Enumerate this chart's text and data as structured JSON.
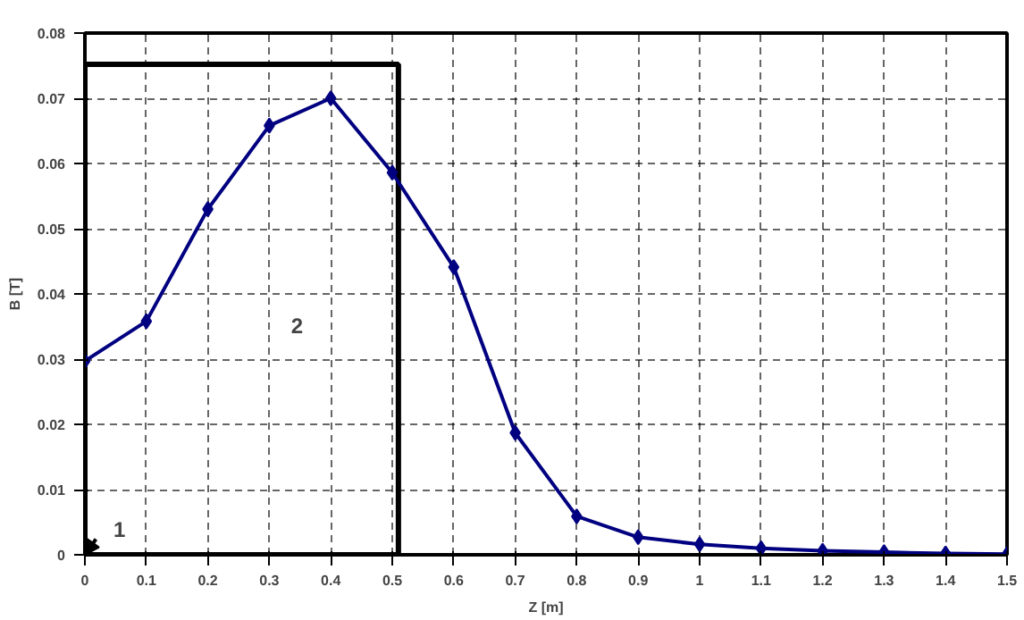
{
  "chart_data": {
    "type": "line",
    "xlabel": "Z [m]",
    "ylabel": "B [T]",
    "x": [
      0,
      0.1,
      0.2,
      0.3,
      0.4,
      0.5,
      0.6,
      0.7,
      0.8,
      0.9,
      1.0,
      1.1,
      1.2,
      1.3,
      1.4,
      1.5
    ],
    "series": [
      {
        "color": "#000080",
        "values": [
          0.0297,
          0.0358,
          0.053,
          0.0658,
          0.07,
          0.0586,
          0.0441,
          0.0187,
          0.0059,
          0.0027,
          0.0016,
          0.001,
          0.0006,
          0.0004,
          0.0002,
          0.0001
        ]
      }
    ],
    "xlim": [
      0,
      1.5
    ],
    "xticks": [
      0,
      {
        "value": 0.1,
        "label": "0.1"
      },
      {
        "value": 0.2,
        "label": "0.2"
      },
      {
        "value": 0.3,
        "label": "0.3"
      },
      {
        "value": 0.4,
        "label": "0.4"
      },
      {
        "value": 0.5,
        "label": "0.5"
      },
      {
        "value": 0.6,
        "label": "0.6"
      },
      {
        "value": 0.7,
        "label": "0.7"
      },
      {
        "value": 0.8,
        "label": "0.8"
      },
      {
        "value": 0.9,
        "label": "0.9"
      },
      1,
      {
        "value": 1.1,
        "label": "1.1"
      },
      {
        "value": 1.2,
        "label": "1.2"
      },
      {
        "value": 1.3,
        "label": "1.3"
      },
      {
        "value": 1.4,
        "label": "1.4"
      },
      1.5
    ],
    "ylim": [
      0,
      0.08
    ],
    "yticks": [
      0,
      0.01,
      0.02,
      0.03,
      0.04,
      0.05,
      0.06,
      0.07,
      0.08
    ],
    "grid": true,
    "marker": "diamond",
    "line_style": "solid",
    "annotations": [
      "1",
      "2"
    ]
  }
}
